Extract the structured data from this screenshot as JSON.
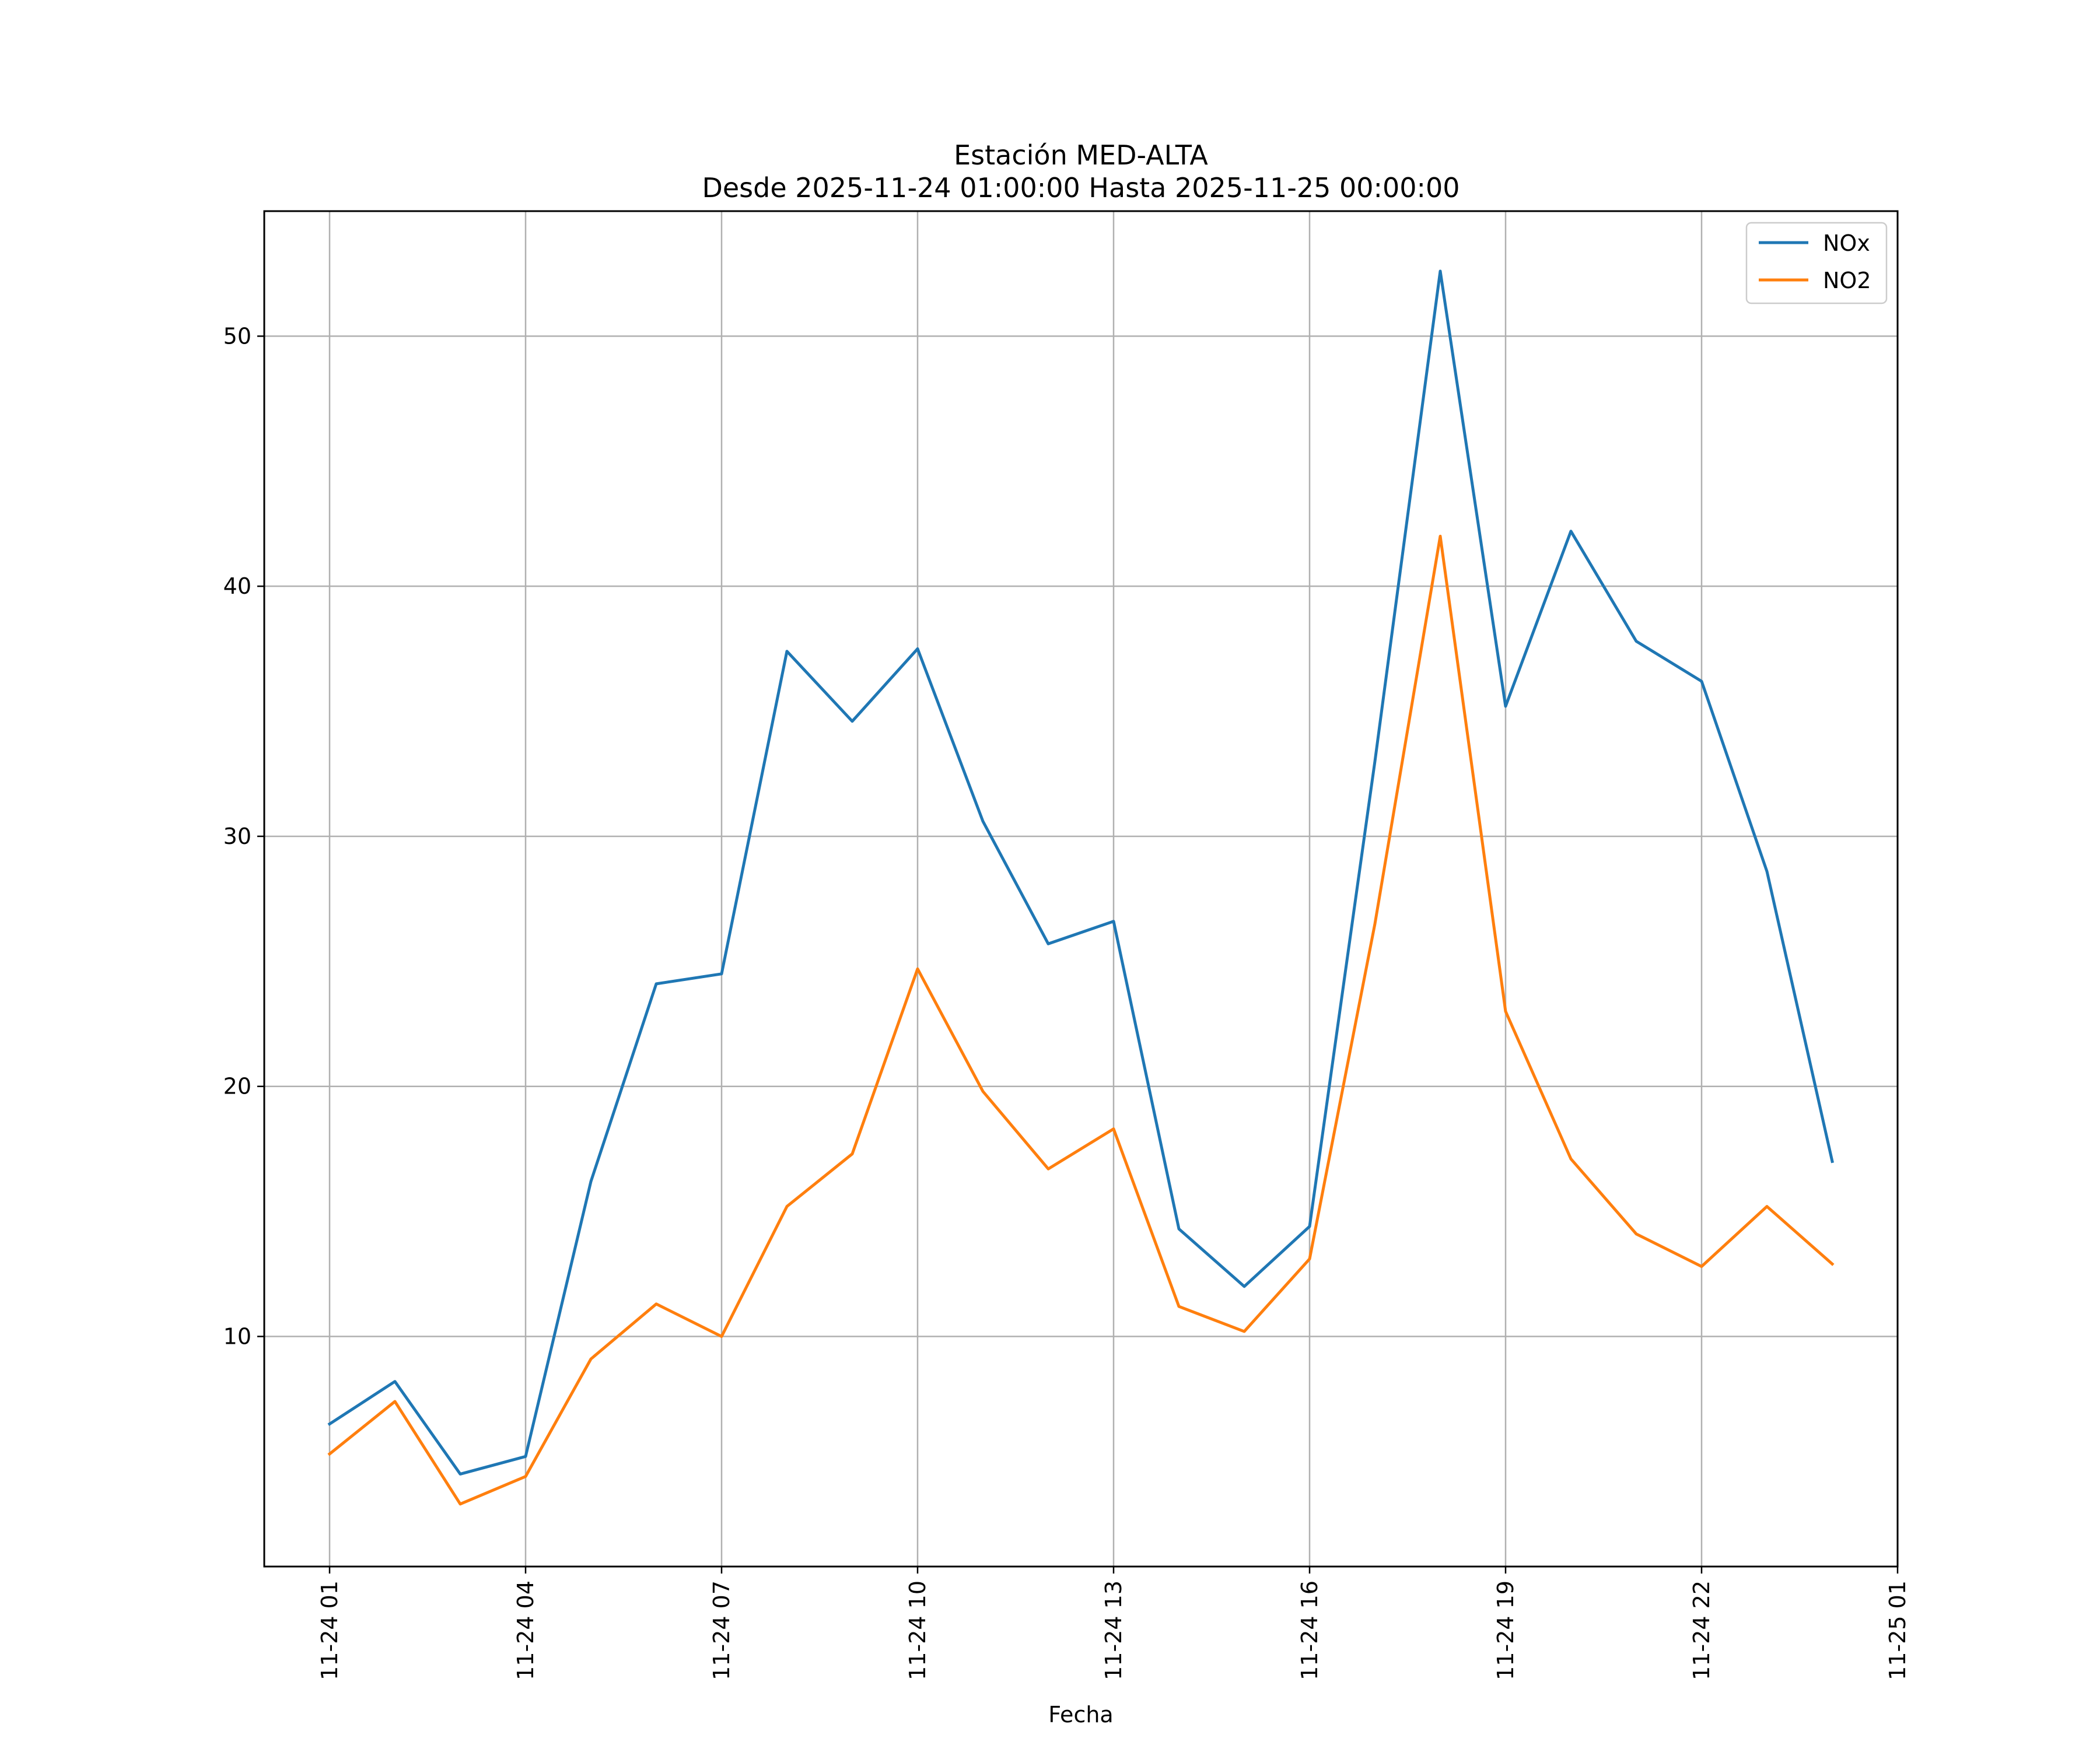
{
  "chart_data": {
    "type": "line",
    "title": "Estación MED-ALTA",
    "subtitle": "Desde 2025-11-24 01:00:00 Hasta 2025-11-25 00:00:00",
    "xlabel": "Fecha",
    "ylabel": "",
    "x": [
      "2025-11-24 01:00",
      "2025-11-24 02:00",
      "2025-11-24 03:00",
      "2025-11-24 04:00",
      "2025-11-24 05:00",
      "2025-11-24 06:00",
      "2025-11-24 07:00",
      "2025-11-24 08:00",
      "2025-11-24 09:00",
      "2025-11-24 10:00",
      "2025-11-24 11:00",
      "2025-11-24 12:00",
      "2025-11-24 13:00",
      "2025-11-24 14:00",
      "2025-11-24 15:00",
      "2025-11-24 16:00",
      "2025-11-24 17:00",
      "2025-11-24 18:00",
      "2025-11-24 19:00",
      "2025-11-24 20:00",
      "2025-11-24 21:00",
      "2025-11-24 22:00",
      "2025-11-24 23:00",
      "2025-11-25 00:00"
    ],
    "series": [
      {
        "name": "NOx",
        "color": "#1f77b4",
        "values": [
          6.5,
          8.2,
          4.5,
          5.2,
          16.2,
          24.1,
          24.5,
          37.4,
          34.6,
          37.5,
          30.6,
          25.7,
          26.6,
          14.3,
          12.0,
          14.4,
          33.0,
          52.6,
          35.2,
          42.2,
          37.8,
          36.2,
          28.6,
          17.0
        ]
      },
      {
        "name": "NO2",
        "color": "#ff7f0e",
        "values": [
          5.3,
          7.4,
          3.3,
          4.4,
          9.1,
          11.3,
          10.0,
          15.2,
          17.3,
          24.7,
          19.8,
          16.7,
          18.3,
          11.2,
          10.2,
          13.1,
          26.5,
          42.0,
          23.0,
          17.1,
          14.1,
          12.8,
          15.2,
          12.9
        ]
      }
    ],
    "x_ticks": [
      "11-24 01",
      "11-24 04",
      "11-24 07",
      "11-24 10",
      "11-24 13",
      "11-24 16",
      "11-24 19",
      "11-24 22",
      "11-25 01"
    ],
    "y_ticks": [
      "10",
      "20",
      "30",
      "40",
      "50"
    ],
    "xlim": [
      "2025-11-24 00:00",
      "2025-11-25 01:00"
    ],
    "ylim": [
      0.8,
      55.0
    ],
    "grid": true,
    "legend": "top-right"
  }
}
